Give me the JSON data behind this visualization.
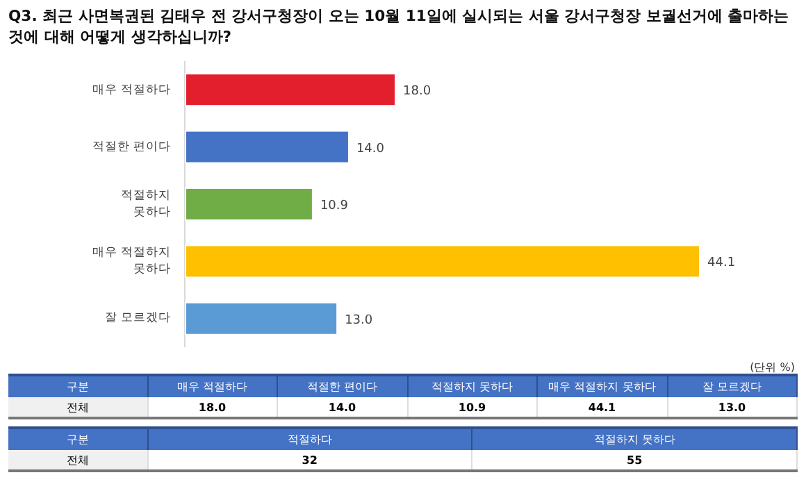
{
  "chart_data": {
    "type": "bar",
    "orientation": "horizontal",
    "title": "Q3. 최근 사면복권된 김태우 전 강서구청장이 오는 10월 11일에 실시되는 서울 강서구청장 보궐선거에 출마하는 것에 대해 어떻게 생각하십니까?",
    "categories": [
      "매우 적절하다",
      "적절한 편이다",
      "적절하지 못하다",
      "매우 적절하지 못하다",
      "잘 모르겠다"
    ],
    "values": [
      18.0,
      14.0,
      10.9,
      44.1,
      13.0
    ],
    "colors": [
      "#e31e2d",
      "#4472c4",
      "#70ad47",
      "#ffc000",
      "#5b9bd5"
    ],
    "value_labels": [
      "18.0",
      "14.0",
      "10.9",
      "44.1",
      "13.0"
    ],
    "annotations": [
      "(단위 %)",
      "구분",
      "전체",
      "구분",
      "전체",
      "적절하다",
      "적절하지 못하다",
      "32",
      "55"
    ]
  }
}
